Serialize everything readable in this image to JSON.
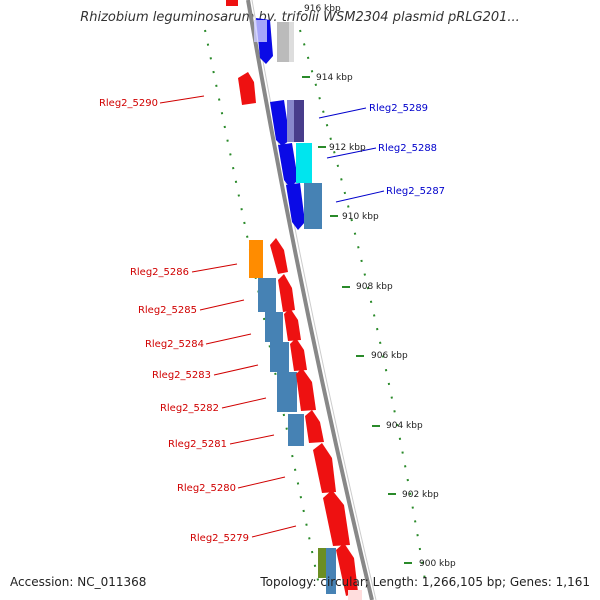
{
  "title": "Rhizobium leguminosarum bv. trifolii WSM2304 plasmid pRLG201...",
  "accession": "Accession: NC_011368",
  "topology": "Topology: circular; Length: 1,266,105 bp; Genes: 1,161",
  "colors": {
    "backbone": "#888888",
    "tick": "#2a8a2a",
    "red_gene": "#ee1111",
    "blue_gene": "#0a0ae6",
    "steel_gene": "#4682b4",
    "orange_gene": "#ff8c00",
    "cyan_gene": "#00e5ee",
    "purple_gene": "#483d8b",
    "gray_gene": "#bbbbbb",
    "olive_gene": "#6b8e23",
    "label_red": "#d00000",
    "label_blue": "#0000cc"
  },
  "kbp_labels": [
    "916 kbp",
    "914 kbp",
    "912 kbp",
    "910 kbp",
    "908 kbp",
    "906 kbp",
    "904 kbp",
    "902 kbp",
    "900 kbp"
  ],
  "left_labels": [
    "Rleg2_5290",
    "Rleg2_5286",
    "Rleg2_5285",
    "Rleg2_5284",
    "Rleg2_5283",
    "Rleg2_5282",
    "Rleg2_5281",
    "Rleg2_5280",
    "Rleg2_5279"
  ],
  "right_labels": [
    "Rleg2_5289",
    "Rleg2_5288",
    "Rleg2_5287"
  ]
}
